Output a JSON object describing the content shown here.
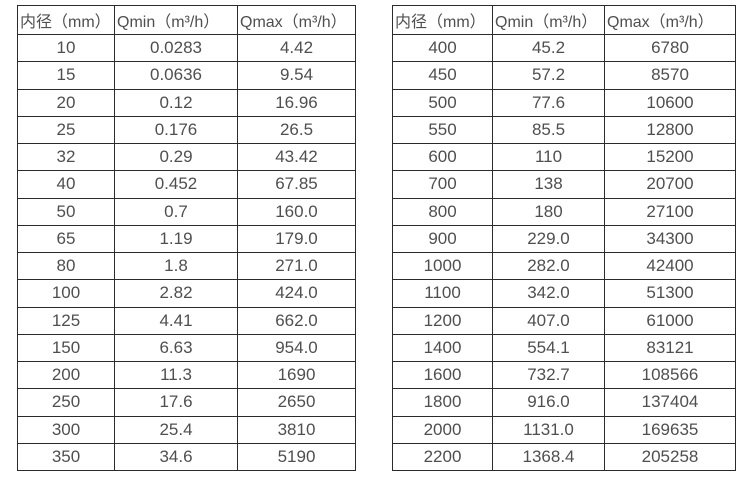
{
  "colors": {
    "background": "#ffffff",
    "table_border": "#2b2b2b",
    "text": "#4f4f4f"
  },
  "chart_data": [
    {
      "type": "table",
      "name": "small-diameter-flow-range-table",
      "columns": [
        "内径（mm）",
        "Qmin（m³/h）",
        "Qmax（m³/h）"
      ],
      "rows": [
        [
          "10",
          "0.0283",
          "4.42"
        ],
        [
          "15",
          "0.0636",
          "9.54"
        ],
        [
          "20",
          "0.12",
          "16.96"
        ],
        [
          "25",
          "0.176",
          "26.5"
        ],
        [
          "32",
          "0.29",
          "43.42"
        ],
        [
          "40",
          "0.452",
          "67.85"
        ],
        [
          "50",
          "0.7",
          "160.0"
        ],
        [
          "65",
          "1.19",
          "179.0"
        ],
        [
          "80",
          "1.8",
          "271.0"
        ],
        [
          "100",
          "2.82",
          "424.0"
        ],
        [
          "125",
          "4.41",
          "662.0"
        ],
        [
          "150",
          "6.63",
          "954.0"
        ],
        [
          "200",
          "11.3",
          "1690"
        ],
        [
          "250",
          "17.6",
          "2650"
        ],
        [
          "300",
          "25.4",
          "3810"
        ],
        [
          "350",
          "34.6",
          "5190"
        ]
      ]
    },
    {
      "type": "table",
      "name": "large-diameter-flow-range-table",
      "columns": [
        "内径（mm）",
        "Qmin（m³/h）",
        "Qmax（m³/h）"
      ],
      "rows": [
        [
          "400",
          "45.2",
          "6780"
        ],
        [
          "450",
          "57.2",
          "8570"
        ],
        [
          "500",
          "77.6",
          "10600"
        ],
        [
          "550",
          "85.5",
          "12800"
        ],
        [
          "600",
          "110",
          "15200"
        ],
        [
          "700",
          "138",
          "20700"
        ],
        [
          "800",
          "180",
          "27100"
        ],
        [
          "900",
          "229.0",
          "34300"
        ],
        [
          "1000",
          "282.0",
          "42400"
        ],
        [
          "1100",
          "342.0",
          "51300"
        ],
        [
          "1200",
          "407.0",
          "61000"
        ],
        [
          "1400",
          "554.1",
          "83121"
        ],
        [
          "1600",
          "732.7",
          "108566"
        ],
        [
          "1800",
          "916.0",
          "137404"
        ],
        [
          "2000",
          "1131.0",
          "169635"
        ],
        [
          "2200",
          "1368.4",
          "205258"
        ]
      ]
    }
  ]
}
